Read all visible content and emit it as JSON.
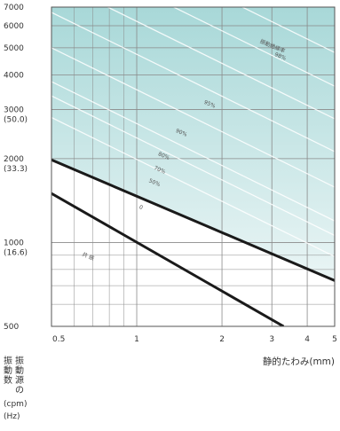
{
  "chart_data": {
    "type": "line",
    "title": "",
    "xlabel": "静的たわみ(mm)",
    "ylabel_vertical": [
      "振",
      "動",
      "数",
      "振",
      "動",
      "源",
      "の"
    ],
    "ylabel_units": [
      "(cpm)",
      "(Hz)"
    ],
    "x_scale": "log",
    "y_scale": "log",
    "xlim": [
      0.5,
      5
    ],
    "ylim": [
      500,
      7000
    ],
    "x_ticks": [
      {
        "value": 0.5,
        "label": "0.5"
      },
      {
        "value": 1,
        "label": "1"
      },
      {
        "value": 2,
        "label": "2"
      },
      {
        "value": 3,
        "label": "3"
      },
      {
        "value": 4,
        "label": "4"
      },
      {
        "value": 5,
        "label": "5"
      }
    ],
    "y_ticks": [
      {
        "value": 7000,
        "label": [
          "7000"
        ]
      },
      {
        "value": 6000,
        "label": [
          "6000"
        ]
      },
      {
        "value": 5000,
        "label": [
          "5000"
        ]
      },
      {
        "value": 4000,
        "label": [
          "4000"
        ]
      },
      {
        "value": 3000,
        "label": [
          "3000",
          "(50.0)"
        ]
      },
      {
        "value": 2000,
        "label": [
          "2000",
          "(33.3)"
        ]
      },
      {
        "value": 1000,
        "label": [
          "1000",
          "(16.6)"
        ]
      },
      {
        "value": 500,
        "label": [
          "500"
        ]
      }
    ],
    "grid": true,
    "shaded_region": "above the 0 line",
    "series": [
      {
        "name": "共振",
        "points": [
          [
            0.5,
            1500
          ],
          [
            3.3,
            500
          ]
        ],
        "style": "thick"
      },
      {
        "name": "0",
        "points": [
          [
            0.5,
            1980
          ],
          [
            5,
            730
          ]
        ],
        "style": "thick"
      },
      {
        "name": "50%",
        "points": [
          [
            0.5,
            2810
          ],
          [
            5,
            890
          ]
        ],
        "style": "faint"
      },
      {
        "name": "70%",
        "points": [
          [
            0.5,
            3360
          ],
          [
            5,
            1060
          ]
        ],
        "style": "faint"
      },
      {
        "name": "80%",
        "points": [
          [
            0.5,
            3780
          ],
          [
            5,
            1195
          ]
        ],
        "style": "faint"
      },
      {
        "name": "90%",
        "points": [
          [
            0.5,
            5000
          ],
          [
            5,
            1580
          ]
        ],
        "style": "faint"
      },
      {
        "name": "95%",
        "points": [
          [
            0.5,
            6700
          ],
          [
            5,
            2120
          ]
        ],
        "style": "faint"
      },
      {
        "name": "",
        "points": [
          [
            0.5,
            8800
          ],
          [
            5,
            2780
          ]
        ],
        "style": "faint"
      },
      {
        "name": "",
        "points": [
          [
            0.5,
            11500
          ],
          [
            5,
            3640
          ]
        ],
        "style": "faint"
      },
      {
        "name": "",
        "points": [
          [
            0.5,
            15200
          ],
          [
            5,
            4810
          ]
        ],
        "style": "faint"
      }
    ],
    "annotations": [
      {
        "text": "振動絶縁率",
        "x": 3.0,
        "y": 5000
      },
      {
        "text": "98%",
        "x": 3.2,
        "y": 4600
      },
      {
        "text": "95%",
        "x": 1.8,
        "y": 3100
      },
      {
        "text": "90%",
        "x": 1.43,
        "y": 2450
      },
      {
        "text": "80%",
        "x": 1.24,
        "y": 2020
      },
      {
        "text": "70%",
        "x": 1.2,
        "y": 1800
      },
      {
        "text": "50%",
        "x": 1.15,
        "y": 1620
      },
      {
        "text": "0",
        "x": 1.03,
        "y": 1320
      },
      {
        "text": "共 振",
        "x": 0.67,
        "y": 880
      }
    ],
    "colors": {
      "shade_top": "#a8d8d8",
      "shade_bottom": "#eaf5f5",
      "bold_line": "#1a1a1a",
      "grid": "#8a8a8a",
      "faint_line": "#ffffff"
    }
  }
}
